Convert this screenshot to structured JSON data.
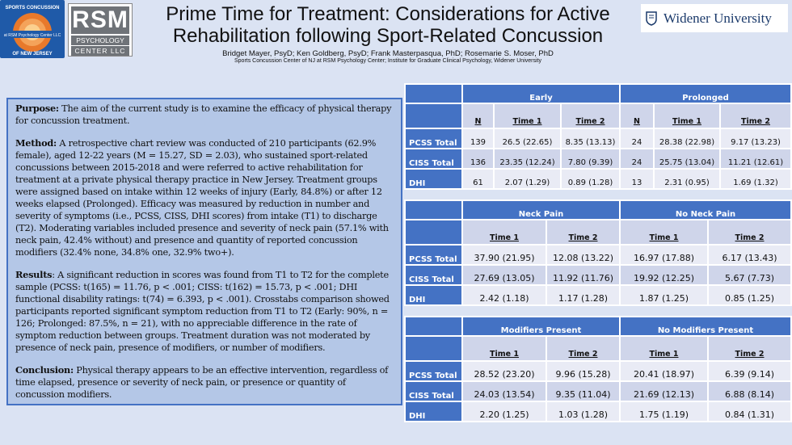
{
  "header": {
    "title_line1": "Prime Time for Treatment: Considerations for Active",
    "title_line2": "Rehabilitation following Sport-Related Concussion",
    "authors": "Bridget Mayer, PsyD; Ken Goldberg, PsyD; Frank Masterpasqua, PhD; Rosemarie S. Moser, PhD",
    "affiliations": "Sports Concussion Center of NJ at RSM Psychology Center; Institute for Graduate Clinical Psychology, Widener University"
  },
  "logos": {
    "scc": "Sports Concussion Center at RSM Psychology Center LLC of New Jersey",
    "rsm_top": "RSM",
    "rsm_line1": "PSYCHOLOGY",
    "rsm_line2": "CENTER LLC",
    "widener": "Widener University"
  },
  "abstract": {
    "purpose_label": "Purpose:",
    "purpose": " The aim of the current study is to examine the efficacy of physical therapy for concussion treatment.",
    "method_label": "Method:",
    "method": " A retrospective chart review was conducted of 210 participants (62.9% female), aged 12-22 years (M = 15.27, SD = 2.03), who sustained sport-related concussions between 2015-2018 and were referred to active rehabilitation for treatment at a private physical therapy practice in New Jersey. Treatment groups were assigned based on intake within 12 weeks of injury (Early, 84.8%) or after 12 weeks elapsed (Prolonged). Efficacy was measured by reduction in number and severity of symptoms (i.e., PCSS, CISS, DHI scores) from intake (T1) to discharge (T2). Moderating variables included presence and severity of neck pain (57.1% with neck pain, 42.4% without) and presence and quantity of reported concussion modifiers (32.4% none, 34.8% one, 32.9% two+).",
    "results_label": "Results",
    "results": ": A significant reduction in scores was found from T1 to T2 for the complete sample (PCSS: t(165) = 11.76, p < .001; CISS: t(162) = 15.73, p < .001; DHI functional disability ratings: t(74) = 6.393, p < .001). Crosstabs comparison showed participants reported significant symptom reduction from T1 to T2 (Early: 90%, n = 126; Prolonged: 87.5%, n = 21), with no appreciable difference in the rate of symptom reduction between groups. Treatment duration was not moderated by presence of neck pain, presence of modifiers, or number of modifiers.",
    "conclusion_label": "Conclusion:",
    "conclusion": " Physical therapy appears to be an effective intervention, regardless of time elapsed, presence or severity of neck pain, or presence or quantity of concussion modifiers."
  },
  "tables": [
    {
      "groups": [
        "Early",
        "Prolonged"
      ],
      "subheaders": [
        "N",
        "Time 1",
        "Time 2",
        "N",
        "Time 1",
        "Time 2"
      ],
      "rows": [
        {
          "label": "PCSS Total",
          "cells": [
            "139",
            "26.5 (22.65)",
            "8.35 (13.13)",
            "24",
            "28.38 (22.98)",
            "9.17 (13.23)"
          ]
        },
        {
          "label": "CISS Total",
          "cells": [
            "136",
            "23.35 (12.24)",
            "7.80 (9.39)",
            "24",
            "25.75 (13.04)",
            "11.21 (12.61)"
          ]
        },
        {
          "label": "DHI",
          "cells": [
            "61",
            "2.07 (1.29)",
            "0.89 (1.28)",
            "13",
            "2.31 (0.95)",
            "1.69 (1.32)"
          ]
        }
      ]
    },
    {
      "groups": [
        "Neck Pain",
        "No Neck Pain"
      ],
      "subheaders": [
        "Time 1",
        "Time 2",
        "Time 1",
        "Time 2"
      ],
      "rows": [
        {
          "label": "PCSS Total",
          "cells": [
            "37.90 (21.95)",
            "12.08 (13.22)",
            "16.97 (17.88)",
            "6.17 (13.43)"
          ]
        },
        {
          "label": "CISS Total",
          "cells": [
            "27.69 (13.05)",
            "11.92 (11.76)",
            "19.92 (12.25)",
            "5.67 (7.73)"
          ]
        },
        {
          "label": "DHI",
          "cells": [
            "2.42 (1.18)",
            "1.17 (1.28)",
            "1.87 (1.25)",
            "0.85 (1.25)"
          ]
        }
      ]
    },
    {
      "groups": [
        "Modifiers Present",
        "No Modifiers Present"
      ],
      "subheaders": [
        "Time 1",
        "Time 2",
        "Time 1",
        "Time 2"
      ],
      "rows": [
        {
          "label": "PCSS Total",
          "cells": [
            "28.52 (23.20)",
            "9.96 (15.28)",
            "20.41 (18.97)",
            "6.39 (9.14)"
          ]
        },
        {
          "label": "CISS Total",
          "cells": [
            "24.03 (13.54)",
            "9.35 (11.04)",
            "21.69 (12.13)",
            "6.88 (8.14)"
          ]
        },
        {
          "label": "DHI",
          "cells": [
            "2.20 (1.25)",
            "1.03 (1.28)",
            "1.75 (1.19)",
            "0.84 (1.31)"
          ]
        }
      ]
    }
  ],
  "colors": {
    "header_blue": "#4472c4",
    "panel_blue": "#b4c7e7",
    "background": "#dbe3f3"
  }
}
